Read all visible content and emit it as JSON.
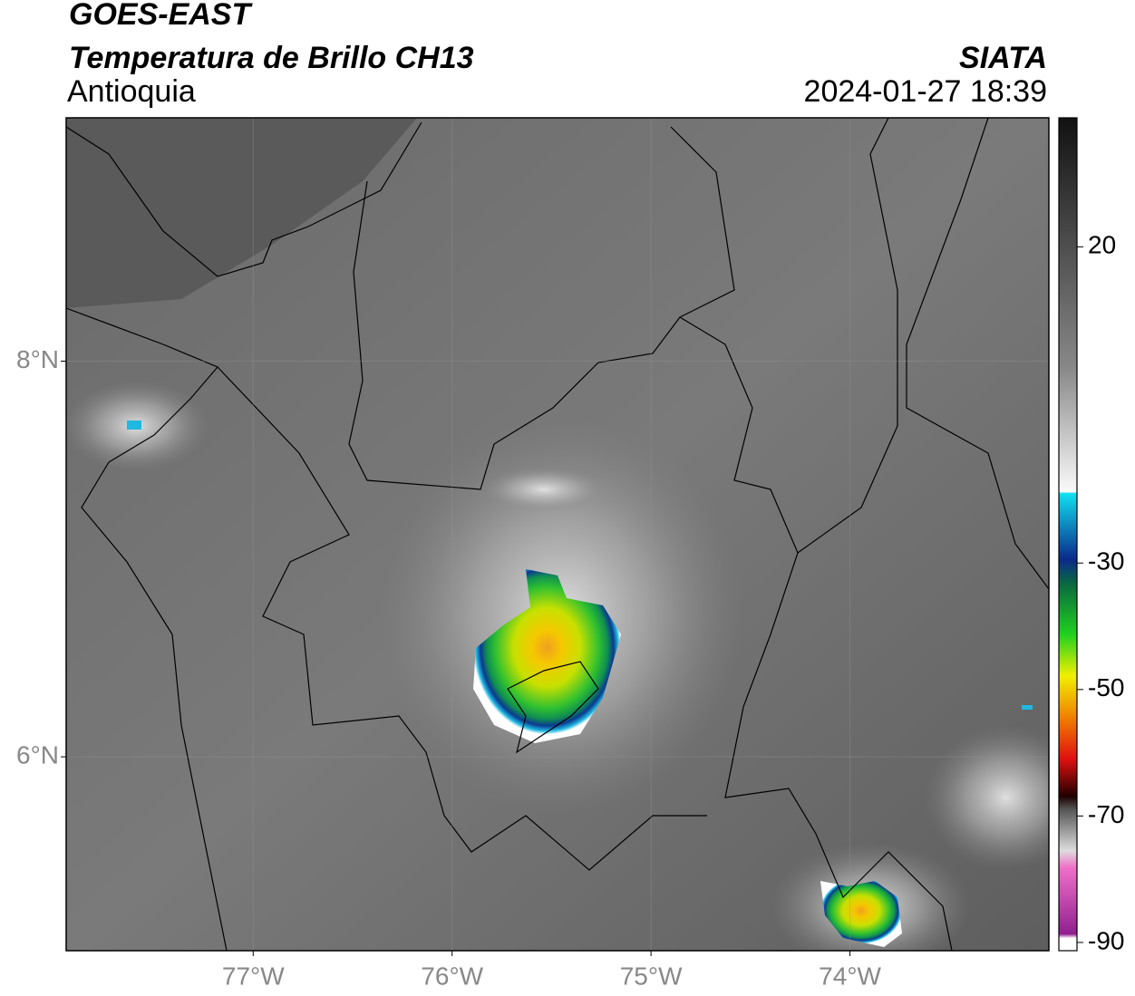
{
  "header": {
    "title": "GOES-EAST",
    "subtitle": "Temperatura de Brillo CH13",
    "region": "Antioquia",
    "source": "SIATA",
    "timestamp": "2024-01-27 18:39"
  },
  "chart_data": {
    "type": "map",
    "xlim": [
      -77.94,
      -73.0
    ],
    "ylim": [
      5.02,
      9.23
    ],
    "xticks": [
      {
        "value": -77,
        "label": "77°W"
      },
      {
        "value": -76,
        "label": "76°W"
      },
      {
        "value": -75,
        "label": "75°W"
      },
      {
        "value": -74,
        "label": "74°W"
      }
    ],
    "yticks": [
      {
        "value": 8,
        "label": "8°N"
      },
      {
        "value": 6,
        "label": "6°N"
      }
    ],
    "grid": true,
    "colorbar": {
      "lim": [
        -91.3,
        40.4
      ],
      "ticks": [
        20,
        -30,
        -50,
        -70,
        -90
      ]
    }
  }
}
